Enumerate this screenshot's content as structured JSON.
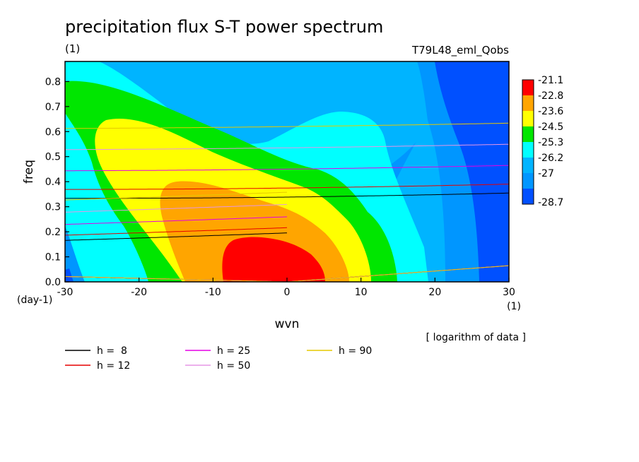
{
  "chart_data": {
    "type": "contour",
    "title": "precipitation flux S-T power spectrum",
    "subtitle_left": "(1)",
    "subtitle_right": "T79L48_eml_Qobs",
    "xlabel": "wvn",
    "ylabel": "freq",
    "x_unit": "(1)",
    "y_unit": "(day-1)",
    "xlim": [
      -30,
      30
    ],
    "ylim": [
      0,
      0.88
    ],
    "x_ticks": [
      -30,
      -20,
      -10,
      0,
      10,
      20,
      30
    ],
    "x_tick_labels": [
      "-30",
      "-20",
      "-10",
      "0",
      "10",
      "20",
      "30"
    ],
    "y_ticks": [
      0,
      0.1,
      0.2,
      0.3,
      0.4,
      0.5,
      0.6,
      0.7,
      0.8
    ],
    "y_tick_labels": [
      "0.0",
      "0.1",
      "0.2",
      "0.3",
      "0.4",
      "0.5",
      "0.6",
      "0.7",
      "0.8"
    ],
    "colorbar": {
      "labels": [
        "-21.1",
        "-22.8",
        "-23.6",
        "-24.5",
        "-25.3",
        "-26.2",
        "-27",
        "-28.7"
      ],
      "colors": [
        "#ff0000",
        "#ffa500",
        "#ffff00",
        "#00e600",
        "#00ffff",
        "#00b4ff",
        "#0096ff",
        "#0050ff"
      ],
      "note": "[ logarithm of data ]"
    },
    "dispersion_curves": [
      {
        "label": "h =  8",
        "h": 8,
        "color": "#000000"
      },
      {
        "label": "h = 12",
        "h": 12,
        "color": "#e60000"
      },
      {
        "label": "h = 25",
        "h": 25,
        "color": "#e600e6"
      },
      {
        "label": "h = 50",
        "h": 50,
        "color": "#e696e6"
      },
      {
        "label": "h = 90",
        "h": 90,
        "color": "#e6c800"
      }
    ]
  }
}
